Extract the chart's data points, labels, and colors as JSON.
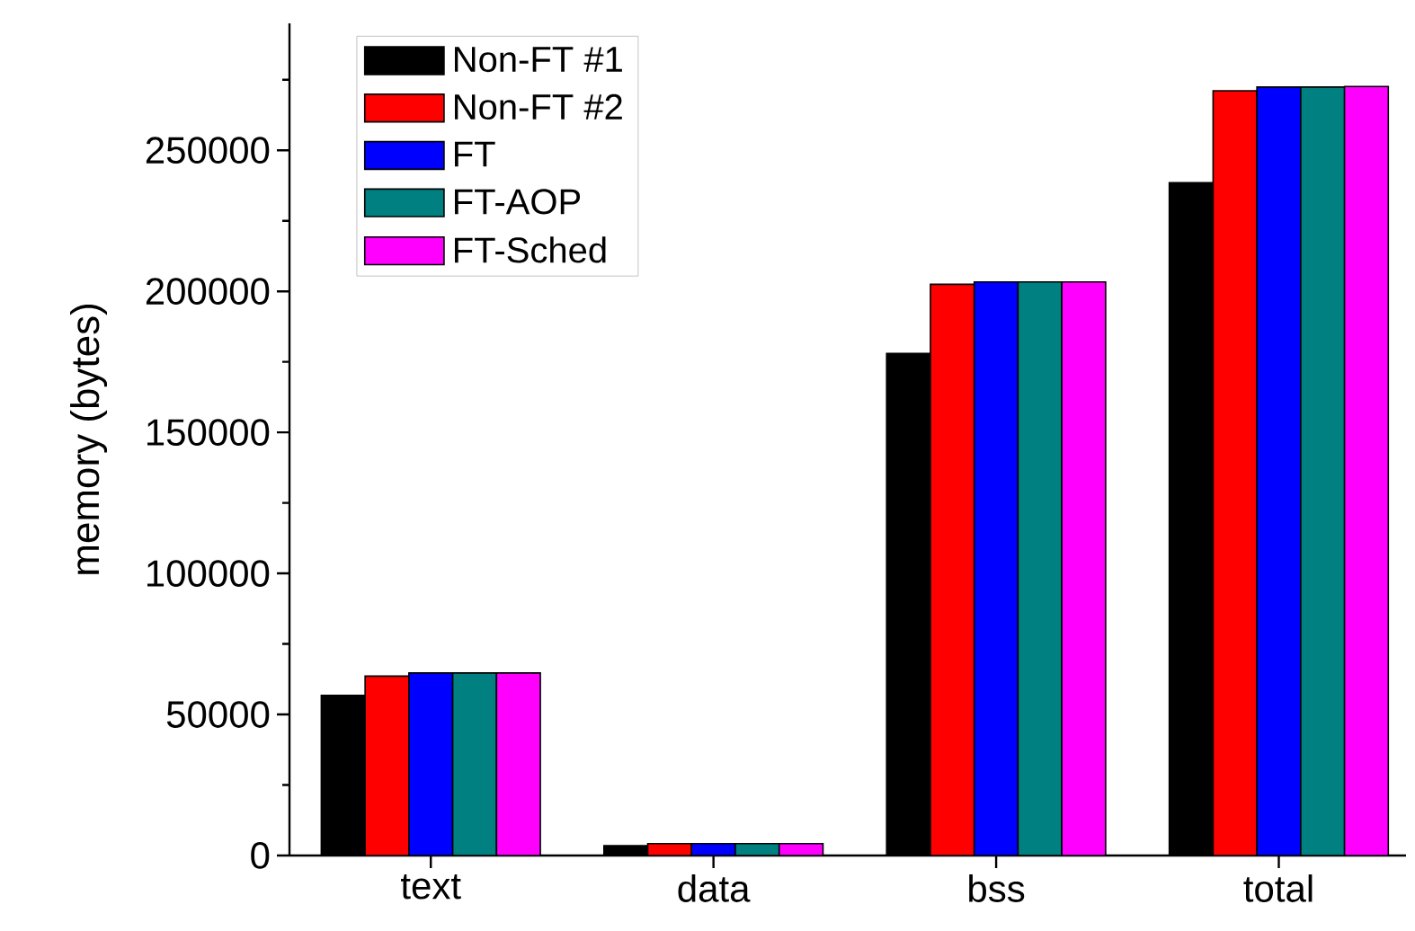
{
  "chart_data": {
    "type": "bar",
    "ylabel": "memory (bytes)",
    "categories": [
      "text",
      "data",
      "bss",
      "total"
    ],
    "series": [
      {
        "name": "Non-FT #1",
        "color": "#000000",
        "values": [
          56800,
          3500,
          178000,
          238500
        ]
      },
      {
        "name": "Non-FT #2",
        "color": "#ff0000",
        "values": [
          63600,
          4200,
          202500,
          271100
        ]
      },
      {
        "name": "FT",
        "color": "#0000ff",
        "values": [
          64700,
          4200,
          203300,
          272400
        ]
      },
      {
        "name": "FT-AOP",
        "color": "#008080",
        "values": [
          64700,
          4200,
          203300,
          272400
        ]
      },
      {
        "name": "FT-Sched",
        "color": "#ff00ff",
        "values": [
          64700,
          4200,
          203300,
          272600
        ]
      }
    ],
    "ylim": [
      0,
      295000
    ],
    "yticks": [
      0,
      {
        "value": 25000,
        "label": null
      },
      50000,
      {
        "value": 75000,
        "label": null
      },
      100000,
      {
        "value": 125000,
        "label": null
      },
      150000,
      {
        "value": 175000,
        "label": null
      },
      200000,
      {
        "value": 225000,
        "label": null
      },
      250000,
      {
        "value": 275000,
        "label": null
      }
    ],
    "grid": false,
    "legend": "top left"
  }
}
